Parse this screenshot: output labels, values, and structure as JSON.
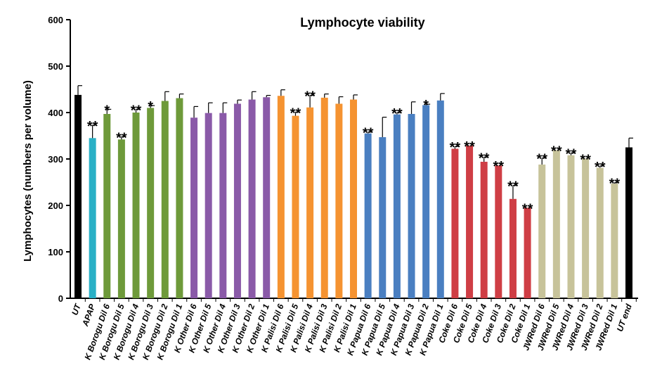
{
  "chart_data": {
    "type": "bar",
    "title": "Lymphocyte viability",
    "xlabel": "",
    "ylabel": "Lymphocytes (numbers per volume)",
    "ylim": [
      0,
      600
    ],
    "yticks": [
      0,
      100,
      200,
      300,
      400,
      500,
      600
    ],
    "grid": false,
    "legend": "none",
    "categories": [
      "UT",
      "APAP",
      "K Borogu Dil 6",
      "K Borogu Dil 5",
      "K Borogu Dil 4",
      "K Borogu Dil 3",
      "K Borogu Dil 2",
      "K Borogu Dil 1",
      "K Other Dil 6",
      "K Other Dil 5",
      "K Other Dil 4",
      "K Other Dil 3",
      "K Other Dil 2",
      "K Other Dil 1",
      "K Palisi Dil 6",
      "K Palisi Dil 5",
      "K Palisi Dil 4",
      "K Palisi Dil 3",
      "K Palisi Dil 2",
      "K Palisi Dil 1",
      "K Papua Dil 6",
      "K Papua Dil 5",
      "K Papua Dil 4",
      "K Papua Dil 3",
      "K Papua Dil 2",
      "K Papua Dil 1",
      "Coke Dil 6",
      "Coke Dil 5",
      "Coke Dil 4",
      "Coke Dil 3",
      "Coke Dil 2",
      "Coke Dil 1",
      "JWRed Dil 6",
      "JWRed Dil 5",
      "JWRed Dil 4",
      "JWRed Dil 3",
      "JWRed Dil 2",
      "JWRed Dil 1",
      "UT end"
    ],
    "values": [
      438,
      345,
      397,
      342,
      400,
      410,
      425,
      431,
      389,
      399,
      399,
      419,
      428,
      433,
      436,
      393,
      411,
      432,
      419,
      428,
      355,
      347,
      396,
      397,
      416,
      426,
      322,
      329,
      294,
      286,
      214,
      195,
      288,
      319,
      308,
      301,
      281,
      247,
      325
    ],
    "errors": [
      20,
      28,
      10,
      6,
      7,
      5,
      20,
      9,
      24,
      22,
      22,
      8,
      17,
      4,
      13,
      8,
      26,
      8,
      15,
      10,
      3,
      43,
      4,
      26,
      2,
      15,
      5,
      0,
      10,
      0,
      29,
      0,
      14,
      0,
      5,
      0,
      4,
      2,
      20
    ],
    "significance": [
      "",
      "**",
      "*",
      "**",
      "**",
      "*",
      "",
      "",
      "",
      "",
      "",
      "",
      "",
      "",
      "",
      "**",
      "**",
      "",
      "",
      "",
      "**",
      "",
      "**",
      "",
      "*",
      "",
      "**",
      "**",
      "**",
      "**",
      "**",
      "**",
      "**",
      "**",
      "**",
      "**",
      "**",
      "**",
      ""
    ],
    "colors": [
      "#000000",
      "#29b0c6",
      "#6e9a3a",
      "#6e9a3a",
      "#6e9a3a",
      "#6e9a3a",
      "#6e9a3a",
      "#6e9a3a",
      "#8a5aa8",
      "#8a5aa8",
      "#8a5aa8",
      "#8a5aa8",
      "#8a5aa8",
      "#8a5aa8",
      "#f59331",
      "#f59331",
      "#f59331",
      "#f59331",
      "#f59331",
      "#f59331",
      "#4a7fc1",
      "#4a7fc1",
      "#4a7fc1",
      "#4a7fc1",
      "#4a7fc1",
      "#4a7fc1",
      "#cf3e45",
      "#cf3e45",
      "#cf3e45",
      "#cf3e45",
      "#cf3e45",
      "#cf3e45",
      "#c7c39a",
      "#c7c39a",
      "#c7c39a",
      "#c7c39a",
      "#c7c39a",
      "#c7c39a",
      "#000000"
    ]
  }
}
